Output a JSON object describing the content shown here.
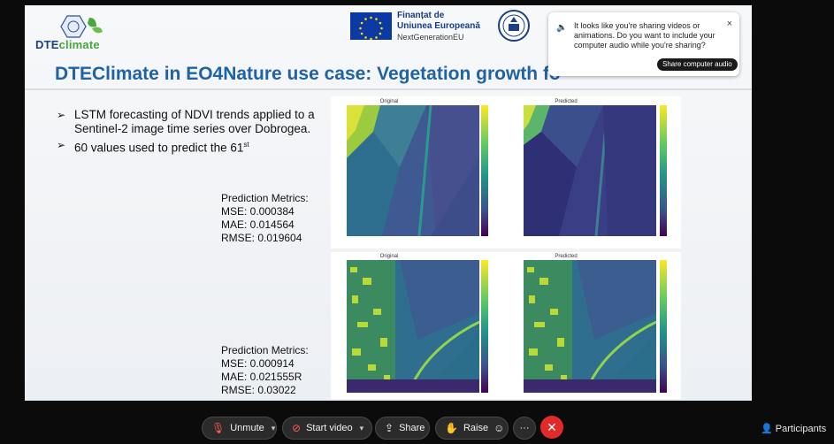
{
  "slide": {
    "logo_part1": "DTE",
    "logo_part2": "climate",
    "eu_line1": "Finanțat de",
    "eu_line2": "Uniunea Europeană",
    "eu_line3": "NextGenerationEU",
    "title": "DTEClimate in EO4Nature use case: Vegetation growth fo",
    "bullets": [
      {
        "text": "LSTM forecasting of NDVI trends applied to a Sentinel-2 image time series over Dobrogea."
      },
      {
        "text": "60 values used to predict the 61",
        "sup": "st"
      }
    ],
    "metrics_top": {
      "heading": "Prediction Metrics:",
      "mse": "MSE: 0.000384",
      "mae": "MAE: 0.014564",
      "rmse": "RMSE: 0.019604"
    },
    "metrics_bottom": {
      "heading": "Prediction Metrics:",
      "mse": "MSE: 0.000914",
      "mae": "MAE: 0.021555R",
      "rmse": "RMSE: 0.03022"
    },
    "figures": {
      "original_label": "Original",
      "predicted_label": "Predicted",
      "top_ytick": [
        "0",
        "20",
        "40",
        "60",
        "80"
      ],
      "top_xtick": [
        "0",
        "20",
        "40",
        "60",
        "80"
      ],
      "top_left_cbar": [
        "0.2",
        "0.3",
        "0.4",
        "0.5",
        "0.6",
        "0.7",
        "0.8"
      ],
      "top_right_cbar": [
        "0.7",
        "0.6",
        "0.5",
        "0.4",
        "0.3",
        "0.2"
      ],
      "bottom_left_cbar": [
        "0.8",
        "0.6",
        "0.4",
        "0.2",
        "0.0"
      ],
      "bottom_right_cbar": [
        "0.6",
        "0.4",
        "0.3",
        "0.2",
        "0.1"
      ]
    }
  },
  "toast": {
    "message": "It looks like you're sharing videos or animations. Do you want to include your computer audio while you're sharing?",
    "button": "Share computer audio",
    "close": "×"
  },
  "controls": {
    "unmute": "Unmute",
    "start_video": "Start video",
    "share": "Share",
    "raise": "Raise",
    "participants": "Participants"
  }
}
